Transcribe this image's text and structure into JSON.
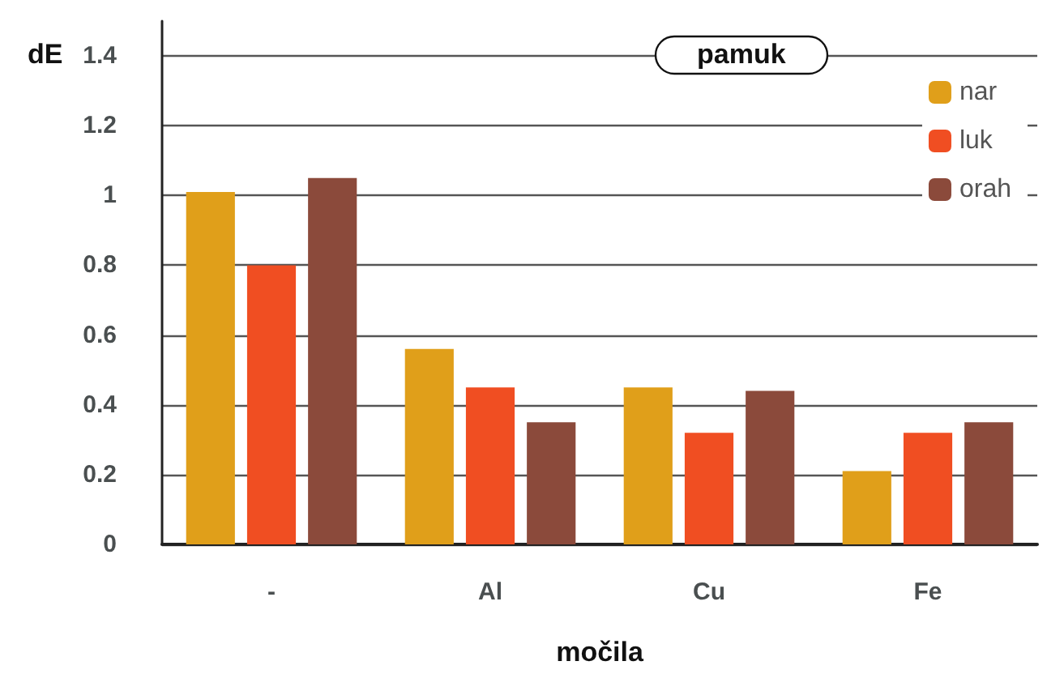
{
  "chart_data": {
    "type": "bar",
    "title": "pamuk",
    "xlabel": "močila",
    "ylabel": "dE",
    "categories": [
      "-",
      "Al",
      "Cu",
      "Fe"
    ],
    "series": [
      {
        "name": "nar",
        "color": "#e09f1a",
        "values": [
          1.01,
          0.56,
          0.45,
          0.21
        ]
      },
      {
        "name": "luk",
        "color": "#f04e22",
        "values": [
          0.8,
          0.45,
          0.32,
          0.32
        ]
      },
      {
        "name": "orah",
        "color": "#8b4a3b",
        "values": [
          1.05,
          0.35,
          0.44,
          0.35
        ]
      }
    ],
    "ylim": [
      0,
      1.5
    ],
    "yticks": [
      0,
      0.2,
      0.4,
      0.6,
      0.8,
      1,
      1.2,
      1.4
    ],
    "grid": "y",
    "legend": "top right"
  }
}
